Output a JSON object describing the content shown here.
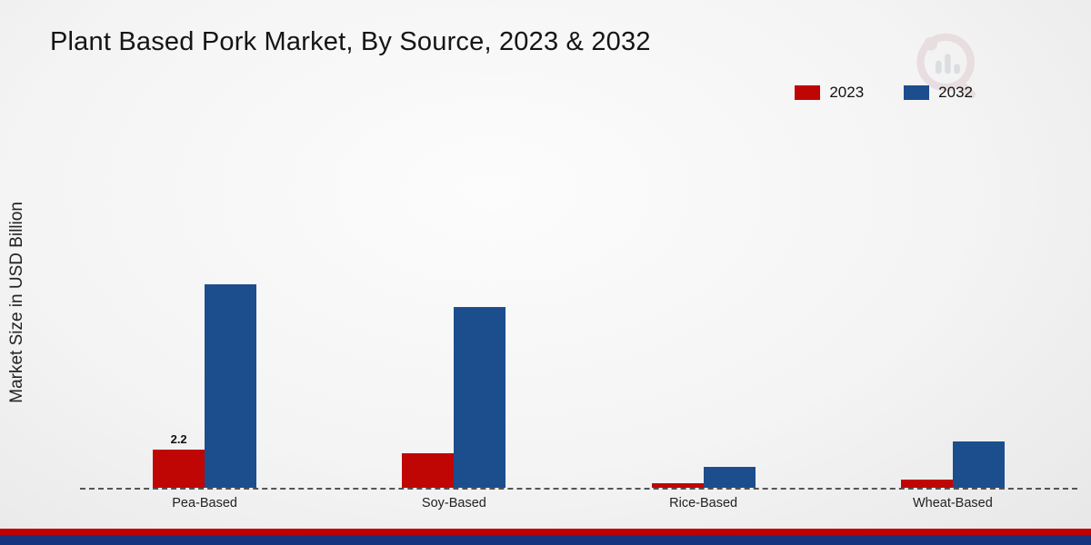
{
  "title": "Plant Based Pork Market, By Source, 2023 & 2032",
  "ylabel": "Market Size in USD Billion",
  "legend": [
    {
      "label": "2023",
      "color": "#c00505"
    },
    {
      "label": "2032",
      "color": "#1c4e8e"
    }
  ],
  "footer": {
    "red_stripe_color": "#c00000",
    "blue_stripe_color": "#14357d"
  },
  "watermark": {
    "name": "brand-logo-watermark",
    "color": "#d9c6ca"
  },
  "chart_data": {
    "type": "bar",
    "categories": [
      "Pea-Based",
      "Soy-Based",
      "Rice-Based",
      "Wheat-Based"
    ],
    "series": [
      {
        "name": "2023",
        "color": "#c00505",
        "values": [
          2.2,
          2.0,
          0.25,
          0.5
        ]
      },
      {
        "name": "2032",
        "color": "#1c4e8e",
        "values": [
          11.8,
          10.5,
          1.2,
          2.7
        ]
      }
    ],
    "point_labels": [
      {
        "category_index": 0,
        "series_index": 0,
        "text": "2.2"
      }
    ],
    "title": "Plant Based Pork Market, By Source, 2023 & 2032",
    "xlabel": "",
    "ylabel": "Market Size in USD Billion",
    "ylim": [
      0,
      21.9
    ],
    "pixels_per_unit": 19,
    "grid": false,
    "baseline_style": "dashed",
    "legend_position": "top-right"
  }
}
